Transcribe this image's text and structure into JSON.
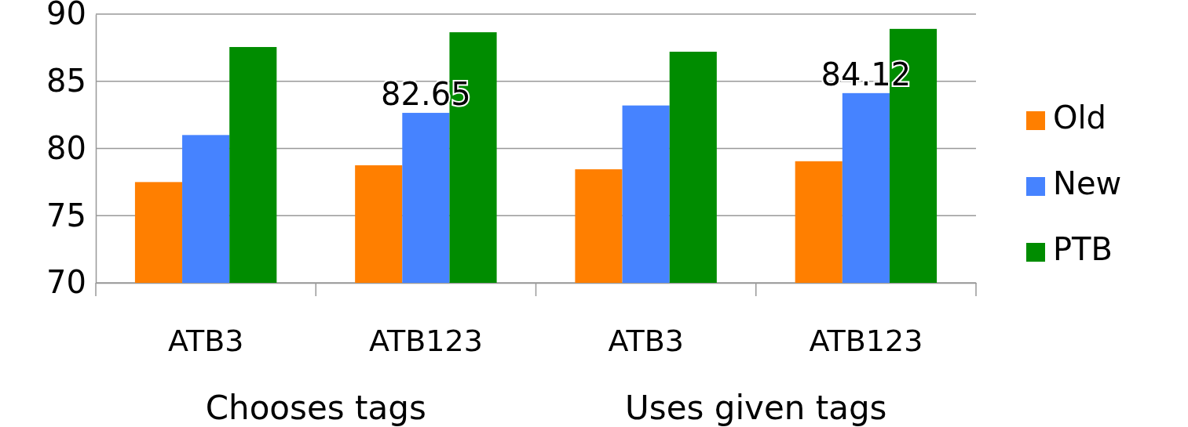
{
  "chart_data": {
    "type": "bar",
    "categories": [
      "ATB3",
      "ATB123",
      "ATB3",
      "ATB123"
    ],
    "series": [
      {
        "name": "Old",
        "color": "#ff7f00",
        "values": [
          77.5,
          78.75,
          78.45,
          79.05
        ]
      },
      {
        "name": "New",
        "color": "#4683ff",
        "values": [
          81.0,
          82.65,
          83.2,
          84.12
        ],
        "value_labels": [
          null,
          "82.65",
          null,
          "84.12"
        ]
      },
      {
        "name": "PTB",
        "color": "#008c00",
        "values": [
          87.55,
          88.65,
          87.2,
          88.9
        ]
      }
    ],
    "ylim": [
      70,
      90
    ],
    "yticks": [
      70,
      75,
      80,
      85,
      90
    ],
    "grid": "y",
    "legend": "right",
    "annotations": [
      "Chooses tags",
      "Uses given tags"
    ]
  }
}
